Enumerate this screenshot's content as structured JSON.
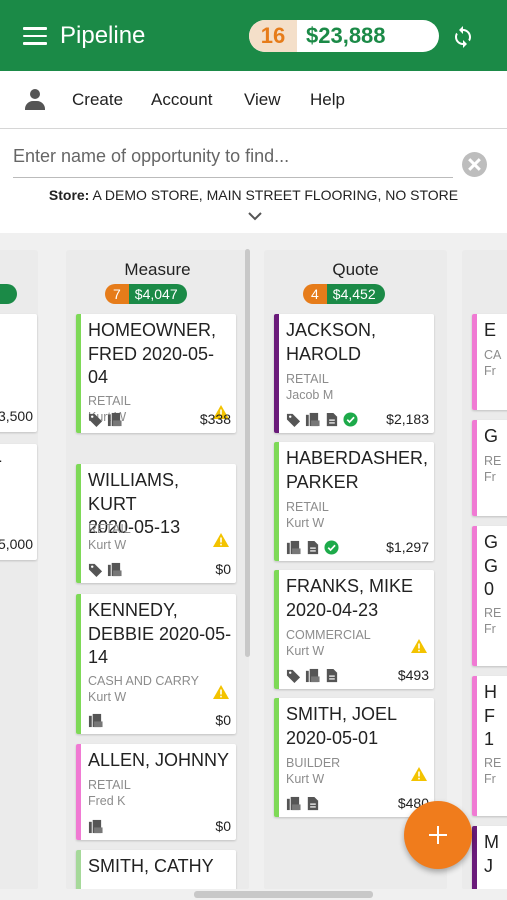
{
  "app": {
    "title": "Pipeline",
    "count": "16",
    "total": "$23,888"
  },
  "menu": {
    "create": "Create",
    "account": "Account",
    "view": "View",
    "help": "Help"
  },
  "search": {
    "placeholder": "Enter name of opportunity to find..."
  },
  "store": {
    "label": "Store:",
    "value": "A DEMO STORE, MAIN STREET FLOORING, NO STORE"
  },
  "colors": {
    "brand": "#1b8a47",
    "accent": "#e67c1a",
    "retail": "#7ed957",
    "purple": "#6a1b7a",
    "pink": "#f07ad3",
    "green_light": "#7ed957"
  },
  "left_partial": {
    "amount1": "3,500",
    "amount2": "5,000"
  },
  "columns": [
    {
      "title": "Measure",
      "count": "7",
      "value": "$4,047",
      "cards": [
        {
          "name": "HOMEOWNER,\nFRED 2020-05-\n04",
          "type": "RETAIL",
          "rep": "Kurt W",
          "amount": "$338"
        },
        {
          "name": "WILLIAMS, KURT\n2020-05-13",
          "type": "RETAIL",
          "rep": "Kurt W",
          "amount": "$0"
        },
        {
          "name": "KENNEDY,\nDEBBIE 2020-05-\n14",
          "type": "CASH AND CARRY",
          "rep": "Kurt W",
          "amount": "$0"
        },
        {
          "name": "ALLEN, JOHNNY",
          "type": "RETAIL",
          "rep": "Fred K",
          "amount": "$0"
        },
        {
          "name": "SMITH, CATHY",
          "type": "",
          "rep": "",
          "amount": ""
        }
      ]
    },
    {
      "title": "Quote",
      "count": "4",
      "value": "$4,452",
      "cards": [
        {
          "name": "JACKSON,\nHAROLD",
          "type": "RETAIL",
          "rep": "Jacob M",
          "amount": "$2,183"
        },
        {
          "name": "HABERDASHER,\nPARKER",
          "type": "RETAIL",
          "rep": "Kurt W",
          "amount": "$1,297"
        },
        {
          "name": "FRANKS, MIKE\n2020-04-23",
          "type": "COMMERCIAL",
          "rep": "Kurt W",
          "amount": "$493"
        },
        {
          "name": "SMITH, JOEL\n2020-05-01",
          "type": "BUILDER",
          "rep": "Kurt W",
          "amount": "$480"
        }
      ]
    }
  ],
  "right_partial": [
    {
      "letter": "E",
      "sub1": "CA",
      "sub2": "Fr"
    },
    {
      "letter": "G",
      "sub1": "RE",
      "sub2": "Fr"
    },
    {
      "letter": "G\nG\n0",
      "sub1": "RE",
      "sub2": "Fr"
    },
    {
      "letter": "H\nF\n1",
      "sub1": "RE",
      "sub2": "Fr"
    },
    {
      "letter": "M\nJ",
      "sub1": "",
      "sub2": ""
    }
  ]
}
